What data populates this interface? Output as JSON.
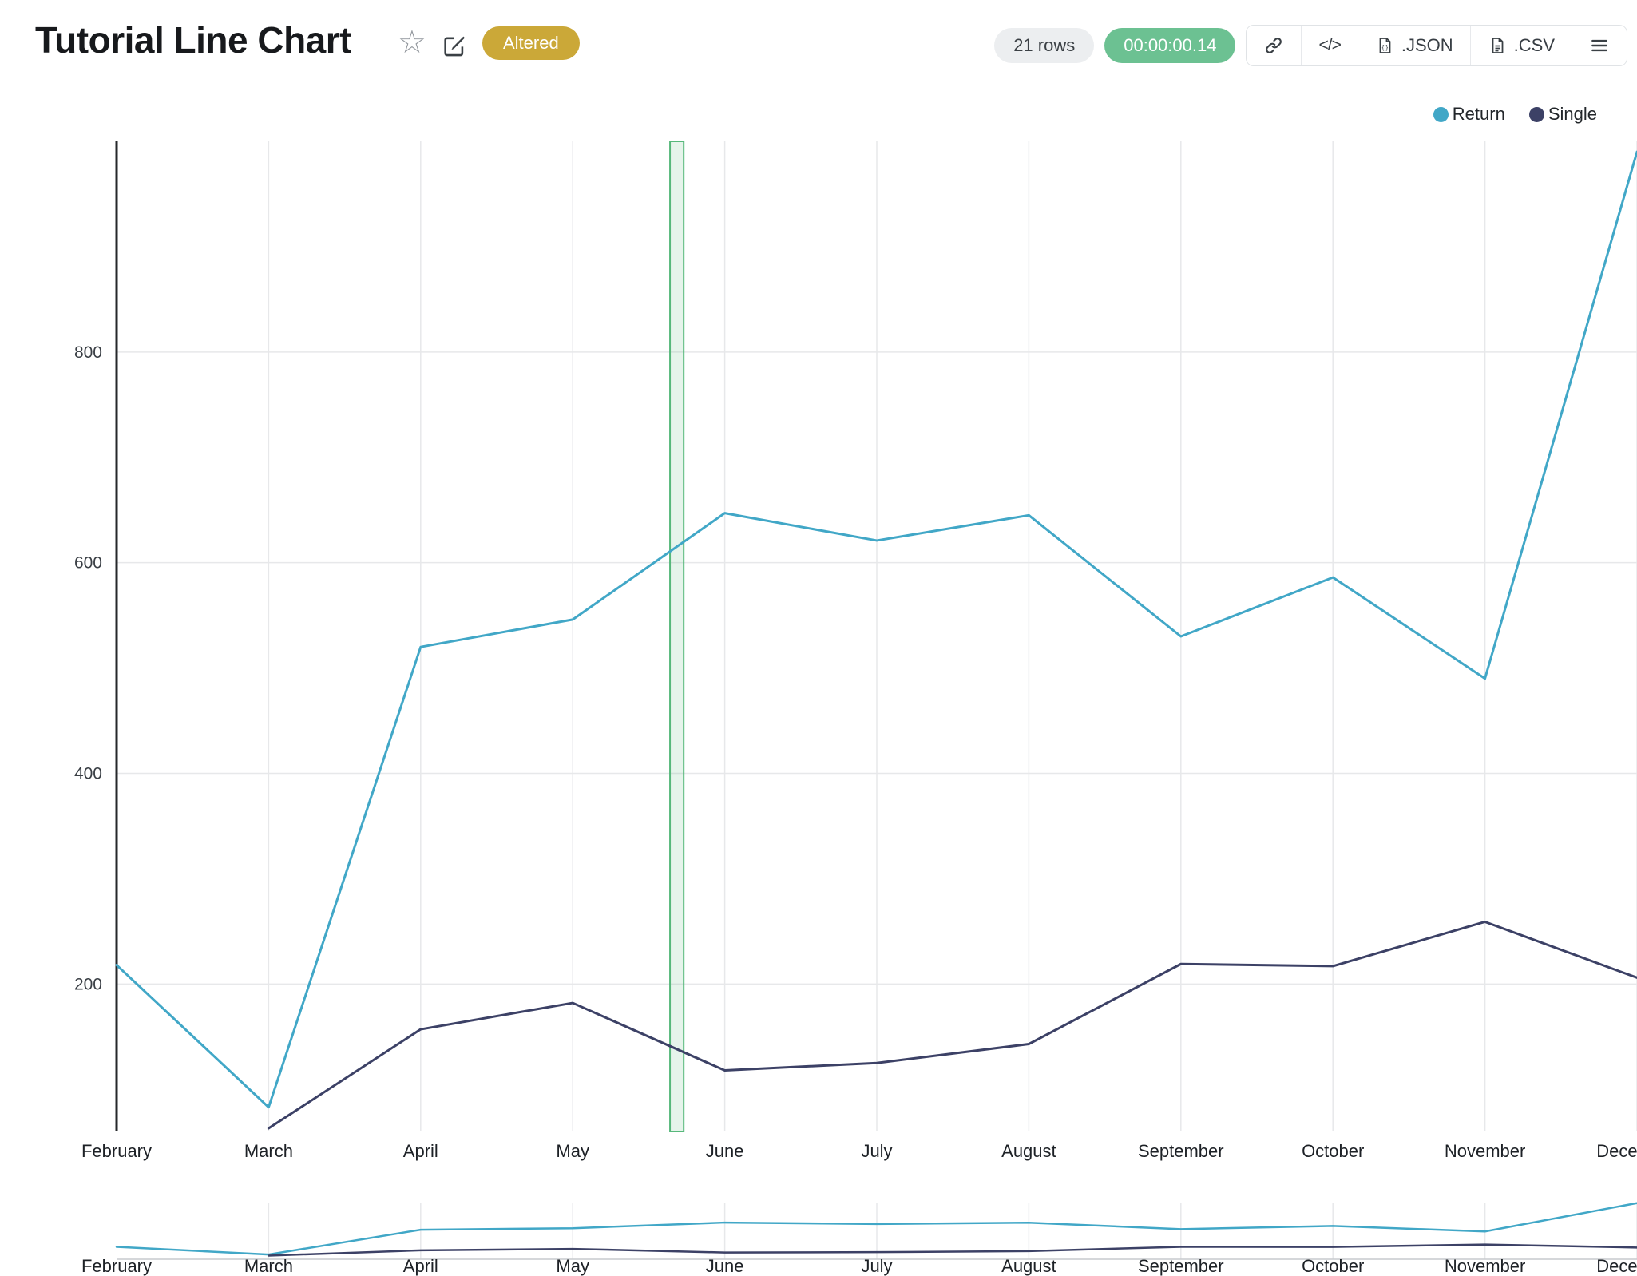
{
  "header": {
    "title": "Tutorial Line Chart",
    "badge": "Altered",
    "rows_label": "21 rows",
    "timer": "00:00:00.14",
    "export_json": ".JSON",
    "export_csv": ".CSV"
  },
  "icons": {
    "star": "☆",
    "code_glyph": "</>",
    "edit": "pencil-square",
    "link": "chain-link",
    "json_file": "file-braces",
    "csv_file": "file-lines",
    "menu": "hamburger-menu"
  },
  "legend": {
    "return_label": "Return",
    "single_label": "Single"
  },
  "colors": {
    "return_series": "#41a7c7",
    "single_series": "#3c4166",
    "badge_bg": "#cba838",
    "timer_bg": "#6cc192",
    "rows_bg": "#eceef0",
    "grid": "#e7e8ea",
    "axis": "#26282b",
    "tick_text": "#1d2126",
    "selection_border": "#57b87b",
    "selection_fill": "rgba(87,184,123,0.15)"
  },
  "chart_data": {
    "type": "line",
    "title": "Tutorial Line Chart",
    "categories": [
      "February",
      "March",
      "April",
      "May",
      "June",
      "July",
      "August",
      "September",
      "October",
      "November",
      "December"
    ],
    "series": [
      {
        "name": "Return",
        "color": "#41a7c7",
        "values": [
          218,
          83,
          520,
          546,
          647,
          621,
          645,
          530,
          586,
          490,
          990
        ]
      },
      {
        "name": "Single",
        "color": "#3c4166",
        "values": [
          null,
          63,
          157,
          182,
          118,
          125,
          143,
          219,
          217,
          259,
          206
        ]
      }
    ],
    "xlabel": "",
    "ylabel": "",
    "ylim": [
      60,
      1000
    ],
    "yticks": [
      200,
      400,
      600,
      800
    ],
    "grid": true,
    "legend_position": "top-right",
    "selection_band": {
      "start_index": 3.64,
      "end_index": 3.73
    },
    "overview": {
      "ylim": [
        0,
        1000
      ]
    }
  }
}
